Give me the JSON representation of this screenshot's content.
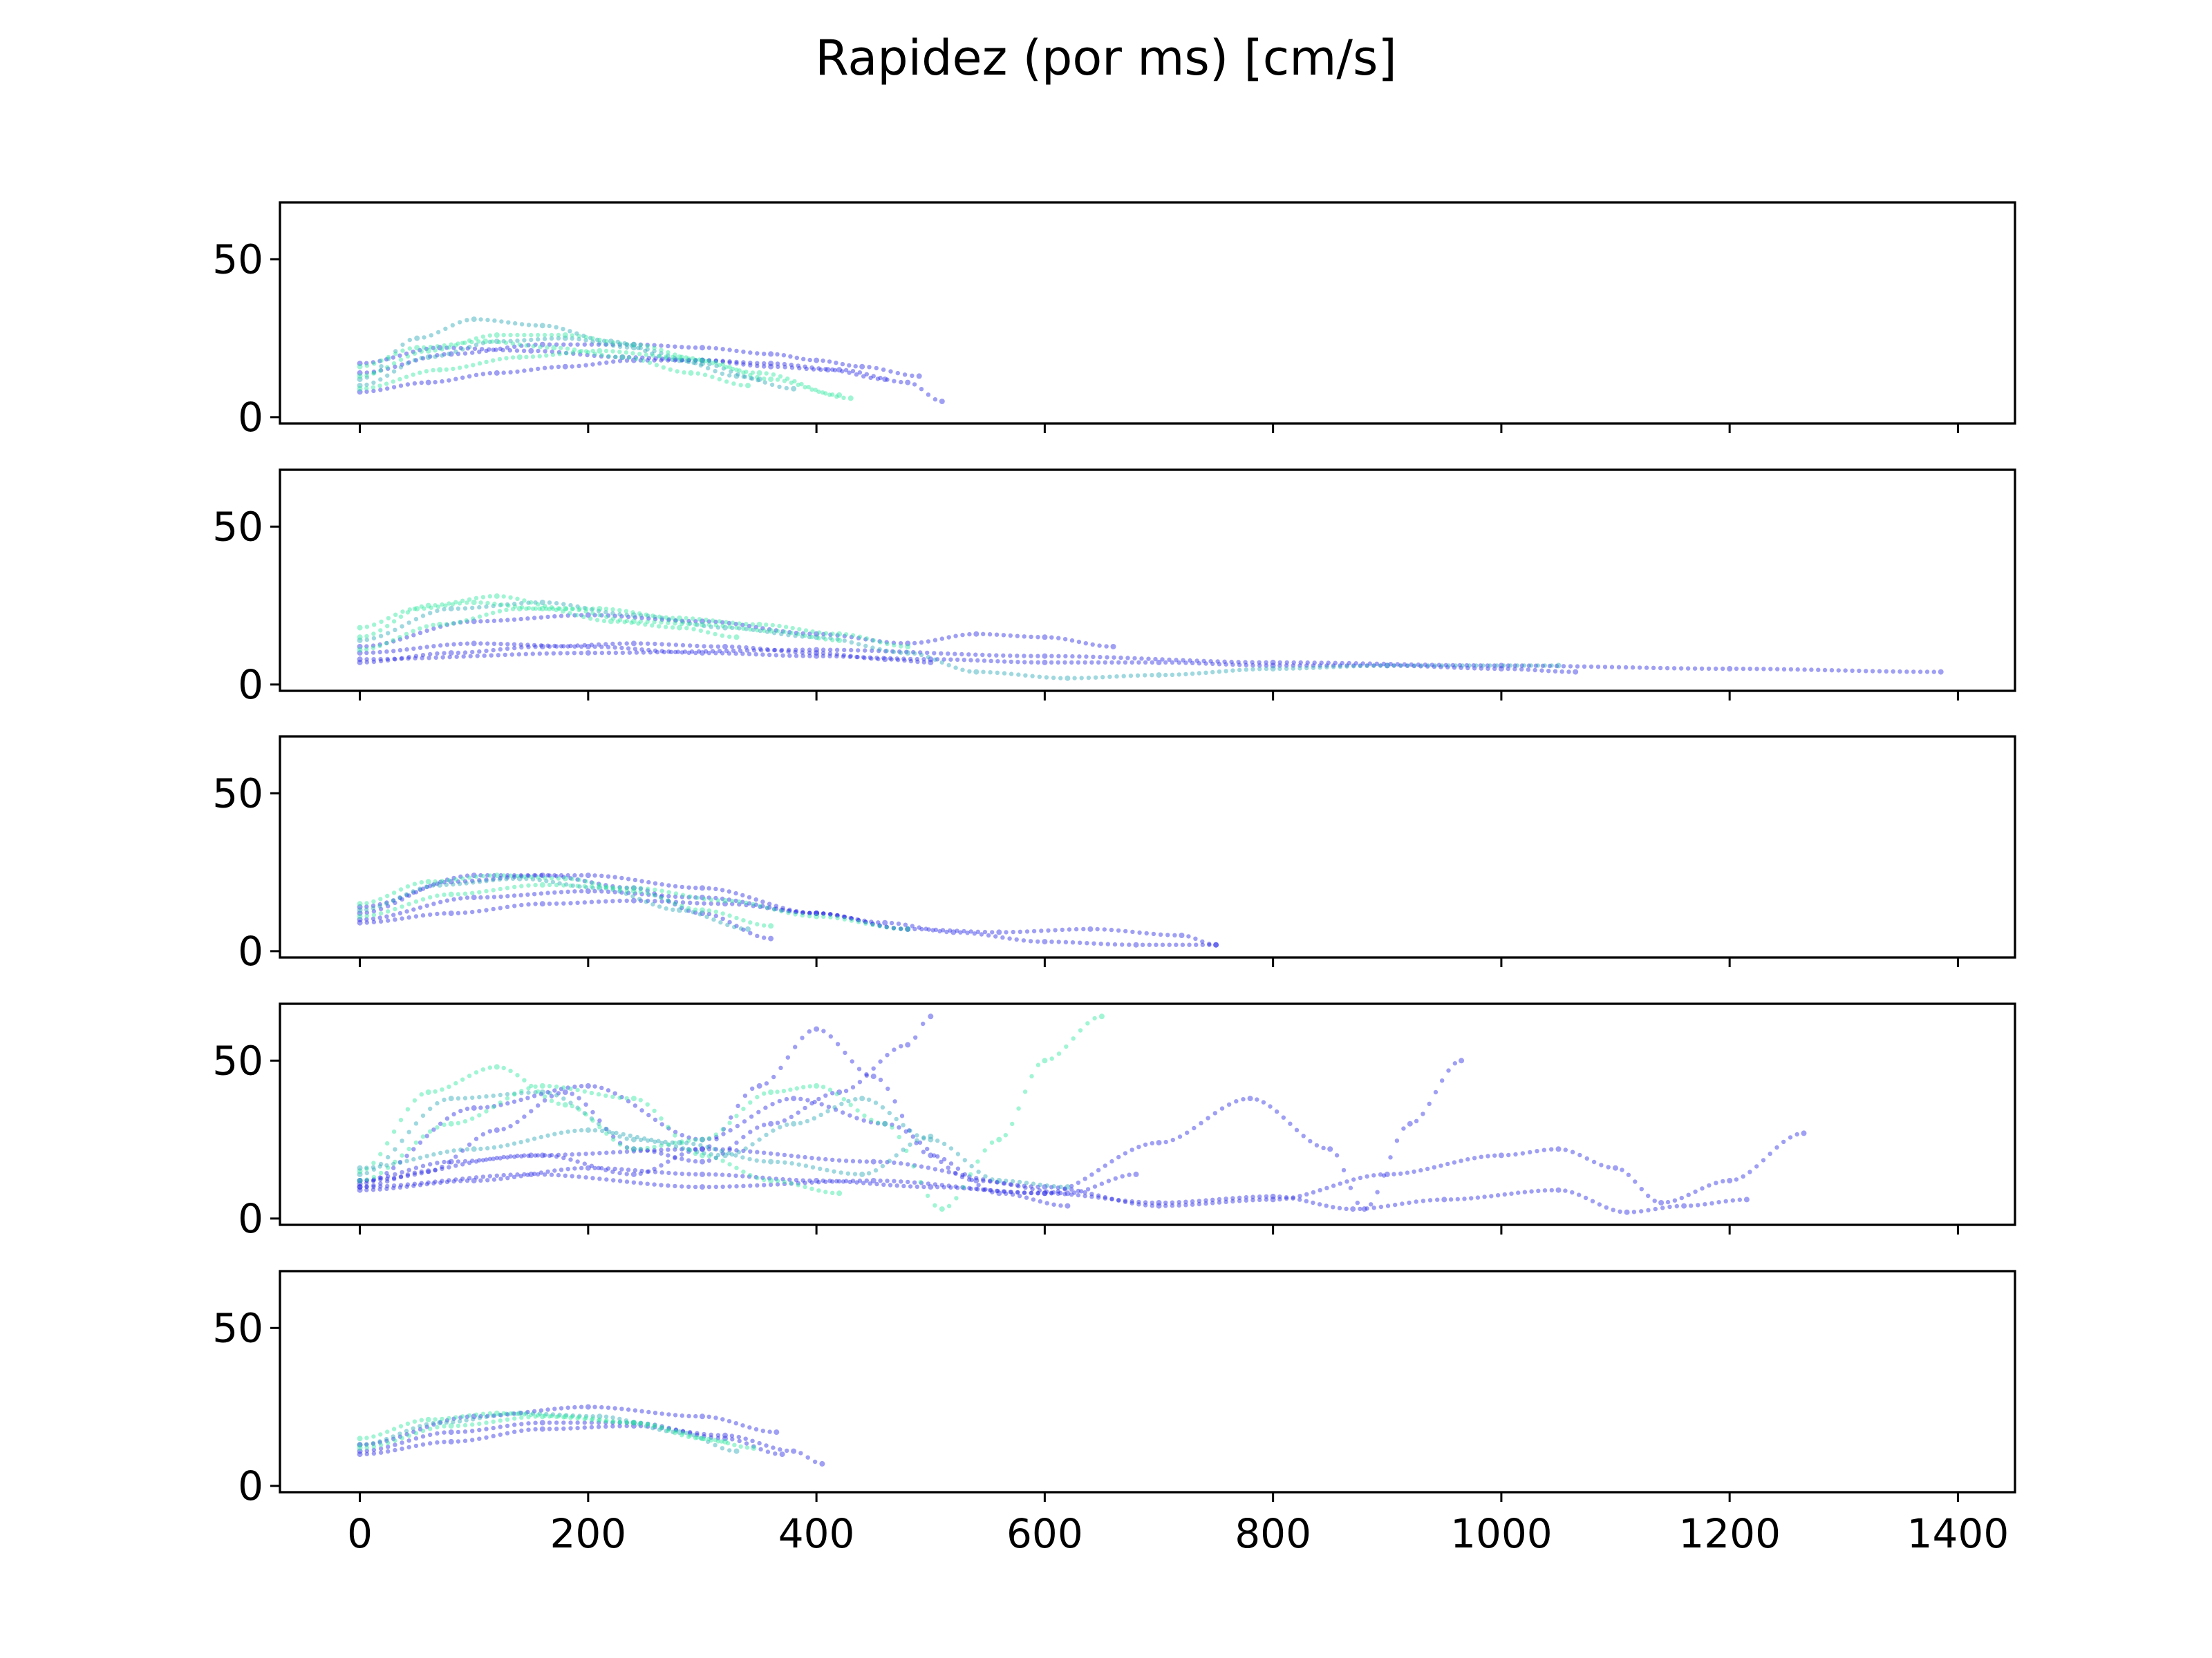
{
  "chart_data": {
    "type": "scatter",
    "title": "Rapidez (por ms) [cm/s]",
    "shared_x": true,
    "xlim": [
      -70,
      1450
    ],
    "ylim": [
      -2,
      68
    ],
    "x_ticks": [
      0,
      200,
      400,
      600,
      800,
      1000,
      1200,
      1400
    ],
    "x_tick_labels": [
      "0",
      "200",
      "400",
      "600",
      "800",
      "1000",
      "1200",
      "1400"
    ],
    "y_ticks": [
      0,
      50
    ],
    "y_tick_labels": [
      "0",
      "50"
    ],
    "colors": {
      "blue": "#2b2be6",
      "green": "#2ee8a0",
      "teal": "#2aa8b8"
    },
    "panels": [
      {
        "series": [
          {
            "color": "blue",
            "x": [
              0,
              60,
              120,
              180,
              240,
              300,
              360,
              420,
              480,
              510
            ],
            "y": [
              8,
              11,
              14,
              16,
              18,
              18,
              17,
              15,
              11,
              5
            ]
          },
          {
            "color": "blue",
            "x": [
              0,
              80,
              160,
              240,
              300,
              360,
              400,
              440,
              490
            ],
            "y": [
              14,
              20,
              23,
              23,
              22,
              20,
              18,
              16,
              13
            ]
          },
          {
            "color": "blue",
            "x": [
              0,
              70,
              150,
              230,
              300,
              360,
              410,
              460
            ],
            "y": [
              17,
              22,
              21,
              19,
              18,
              16,
              15,
              12
            ]
          },
          {
            "color": "teal",
            "x": [
              0,
              50,
              100,
              160,
              220,
              280,
              330,
              380
            ],
            "y": [
              12,
              25,
              31,
              29,
              24,
              18,
              13,
              9
            ]
          },
          {
            "color": "teal",
            "x": [
              0,
              60,
              120,
              180,
              240,
              300,
              350
            ],
            "y": [
              10,
              19,
              24,
              25,
              22,
              17,
              12
            ]
          },
          {
            "color": "green",
            "x": [
              0,
              60,
              120,
              180,
              240,
              300,
              360,
              420
            ],
            "y": [
              13,
              21,
              26,
              26,
              23,
              18,
              12,
              7
            ]
          },
          {
            "color": "green",
            "x": [
              0,
              70,
              140,
              210,
              280,
              350,
              430
            ],
            "y": [
              9,
              15,
              19,
              21,
              19,
              14,
              6
            ]
          },
          {
            "color": "green",
            "x": [
              0,
              50,
              110,
              170,
              230,
              290,
              340
            ],
            "y": [
              16,
              22,
              24,
              22,
              19,
              14,
              10
            ]
          }
        ]
      },
      {
        "series": [
          {
            "color": "blue",
            "x": [
              0,
              200,
              400,
              600,
              800,
              1000,
              1200,
              1385
            ],
            "y": [
              8,
              10,
              11,
              9,
              7,
              6,
              5,
              4
            ]
          },
          {
            "color": "blue",
            "x": [
              0,
              100,
              200,
              300,
              400,
              500,
              600,
              700,
              800,
              900,
              1000,
              1065
            ],
            "y": [
              10,
              13,
              12,
              10,
              9,
              8,
              7,
              7,
              6,
              6,
              5,
              4
            ]
          },
          {
            "color": "blue",
            "x": [
              0,
              100,
              200,
              300,
              400,
              480,
              540,
              600,
              660
            ],
            "y": [
              12,
              20,
              22,
              20,
              16,
              13,
              16,
              15,
              12
            ]
          },
          {
            "color": "blue",
            "x": [
              0,
              80,
              160,
              240,
              320,
              400,
              460,
              500
            ],
            "y": [
              7,
              10,
              12,
              13,
              12,
              10,
              8,
              7
            ]
          },
          {
            "color": "teal",
            "x": [
              0,
              80,
              160,
              240,
              320,
              400,
              480,
              540,
              620,
              700,
              800,
              900,
              1050
            ],
            "y": [
              14,
              24,
              26,
              22,
              18,
              15,
              10,
              4,
              2,
              3,
              5,
              6,
              6
            ]
          },
          {
            "color": "green",
            "x": [
              0,
              60,
              120,
              180,
              240,
              300,
              360,
              420
            ],
            "y": [
              15,
              25,
              28,
              24,
              20,
              19,
              17,
              14
            ]
          },
          {
            "color": "green",
            "x": [
              0,
              70,
              140,
              210,
              280,
              350,
              420,
              480
            ],
            "y": [
              11,
              19,
              24,
              24,
              21,
              19,
              16,
              12
            ]
          },
          {
            "color": "green",
            "x": [
              0,
              50,
              100,
              160,
              220,
              280,
              330
            ],
            "y": [
              18,
              24,
              26,
              24,
              20,
              18,
              15
            ]
          }
        ]
      },
      {
        "series": [
          {
            "color": "blue",
            "x": [
              0,
              80,
              160,
              240,
              320,
              400,
              460,
              520,
              600,
              680,
              750
            ],
            "y": [
              9,
              12,
              15,
              16,
              15,
              12,
              9,
              6,
              3,
              2,
              2
            ]
          },
          {
            "color": "blue",
            "x": [
              0,
              100,
              200,
              300,
              400,
              480,
              560,
              640,
              720,
              750
            ],
            "y": [
              10,
              17,
              19,
              17,
              12,
              7,
              6,
              7,
              5,
              2
            ]
          },
          {
            "color": "blue",
            "x": [
              0,
              80,
              160,
              240,
              300,
              360
            ],
            "y": [
              12,
              22,
              24,
              20,
              12,
              4
            ]
          },
          {
            "color": "blue",
            "x": [
              0,
              100,
              200,
              300,
              400,
              480
            ],
            "y": [
              14,
              24,
              24,
              20,
              12,
              7
            ]
          },
          {
            "color": "teal",
            "x": [
              0,
              70,
              140,
              210,
              280,
              340
            ],
            "y": [
              13,
              21,
              23,
              20,
              13,
              7
            ]
          },
          {
            "color": "green",
            "x": [
              0,
              60,
              120,
              180,
              240,
              300,
              360
            ],
            "y": [
              15,
              22,
              24,
              23,
              19,
              13,
              8
            ]
          },
          {
            "color": "green",
            "x": [
              0,
              80,
              160,
              240,
              320,
              400,
              480
            ],
            "y": [
              11,
              18,
              21,
              20,
              16,
              11,
              7
            ]
          }
        ]
      },
      {
        "series": [
          {
            "color": "blue",
            "x": [
              0,
              60,
              120,
              180,
              240,
              300,
              360,
              420,
              480,
              500
            ],
            "y": [
              10,
              15,
              28,
              40,
              22,
              18,
              30,
              40,
              55,
              64
            ]
          },
          {
            "color": "blue",
            "x": [
              0,
              80,
              160,
              240,
              300,
              350,
              400,
              450,
              500,
              560,
              620
            ],
            "y": [
              12,
              18,
              20,
              14,
              22,
              42,
              60,
              45,
              20,
              8,
              4
            ]
          },
          {
            "color": "blue",
            "x": [
              0,
              100,
              200,
              300,
              400,
              500,
              600,
              700,
              780,
              850,
              880,
              920,
              965
            ],
            "y": [
              9,
              12,
              16,
              14,
              12,
              10,
              8,
              24,
              38,
              22,
              3,
              30,
              50
            ]
          },
          {
            "color": "blue",
            "x": [
              0,
              150,
              300,
              450,
              600,
              700,
              800,
              900,
              1000,
              1050,
              1100,
              1140,
              1200,
              1265
            ],
            "y": [
              12,
              20,
              22,
              18,
              10,
              4,
              6,
              14,
              20,
              22,
              16,
              5,
              12,
              27
            ]
          },
          {
            "color": "blue",
            "x": [
              0,
              150,
              300,
              450,
              600,
              700,
              800,
              870,
              950,
              1050,
              1110,
              1160,
              1215
            ],
            "y": [
              10,
              14,
              10,
              12,
              8,
              5,
              7,
              3,
              6,
              9,
              2,
              4,
              6
            ]
          },
          {
            "color": "blue",
            "x": [
              0,
              100,
              200,
              300,
              380,
              460,
              540,
              620,
              680
            ],
            "y": [
              11,
              35,
              42,
              25,
              38,
              30,
              12,
              8,
              14
            ]
          },
          {
            "color": "teal",
            "x": [
              0,
              80,
              160,
              240,
              320,
              380,
              440,
              500,
              560,
              620
            ],
            "y": [
              14,
              38,
              40,
              25,
              20,
              30,
              38,
              25,
              12,
              10
            ]
          },
          {
            "color": "green",
            "x": [
              0,
              60,
              120,
              180,
              240,
              300,
              360,
              400,
              460,
              510,
              560,
              600,
              650
            ],
            "y": [
              15,
              40,
              48,
              36,
              22,
              25,
              40,
              42,
              30,
              3,
              25,
              50,
              64
            ]
          },
          {
            "color": "green",
            "x": [
              0,
              80,
              160,
              240,
              300,
              360,
              420
            ],
            "y": [
              12,
              30,
              42,
              38,
              20,
              12,
              8
            ]
          },
          {
            "color": "teal",
            "x": [
              0,
              100,
              200,
              280,
              360,
              440,
              500
            ],
            "y": [
              16,
              22,
              28,
              24,
              18,
              14,
              26
            ]
          }
        ]
      },
      {
        "series": [
          {
            "color": "blue",
            "x": [
              0,
              80,
              160,
              240,
              320,
              380,
              405
            ],
            "y": [
              10,
              14,
              18,
              19,
              16,
              11,
              7
            ]
          },
          {
            "color": "blue",
            "x": [
              0,
              100,
              200,
              300,
              365
            ],
            "y": [
              13,
              22,
              25,
              22,
              17
            ]
          },
          {
            "color": "blue",
            "x": [
              0,
              80,
              160,
              240,
              320,
              370
            ],
            "y": [
              11,
              17,
              20,
              20,
              15,
              10
            ]
          },
          {
            "color": "teal",
            "x": [
              0,
              70,
              140,
              210,
              280,
              330
            ],
            "y": [
              13,
              20,
              23,
              22,
              17,
              11
            ]
          },
          {
            "color": "green",
            "x": [
              0,
              60,
              120,
              180,
              240,
              300,
              345
            ],
            "y": [
              15,
              21,
              23,
              22,
              20,
              15,
              12
            ]
          },
          {
            "color": "green",
            "x": [
              0,
              80,
              160,
              240,
              320
            ],
            "y": [
              12,
              19,
              22,
              20,
              14
            ]
          }
        ]
      }
    ]
  }
}
